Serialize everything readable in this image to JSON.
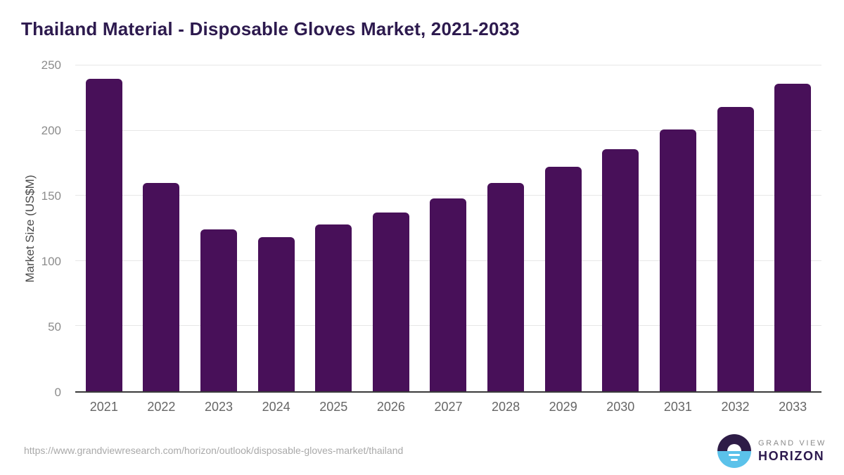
{
  "title": "Thailand Material - Disposable Gloves Market, 2021-2033",
  "chart_data": {
    "type": "bar",
    "title": "Thailand Material - Disposable Gloves Market, 2021-2033",
    "categories": [
      "2021",
      "2022",
      "2023",
      "2024",
      "2025",
      "2026",
      "2027",
      "2028",
      "2029",
      "2030",
      "2031",
      "2032",
      "2033"
    ],
    "values": [
      240,
      160,
      124,
      118,
      128,
      137,
      148,
      160,
      172,
      186,
      201,
      218,
      236
    ],
    "xlabel": "",
    "ylabel": "Market Size (US$M)",
    "ylim": [
      0,
      250
    ],
    "yticks": [
      0,
      50,
      100,
      150,
      200,
      250
    ],
    "grid": true,
    "legend": false,
    "bar_color": "#481059"
  },
  "colors": {
    "title": "#2d1a4e",
    "bar": "#481059",
    "gridline": "#e7e7e7",
    "axis_line": "#3a3a3a",
    "tick_label": "#8c8c8c",
    "x_label": "#666666",
    "url_text": "#a9a9a9",
    "logo_circle_top": "#2e1c47",
    "logo_circle_bottom": "#5bc2ea"
  },
  "footer": {
    "source_url": "https://www.grandviewresearch.com/horizon/outlook/disposable-gloves-market/thailand",
    "logo": {
      "top_text": "GRAND VIEW",
      "bottom_text": "HORIZON"
    }
  }
}
